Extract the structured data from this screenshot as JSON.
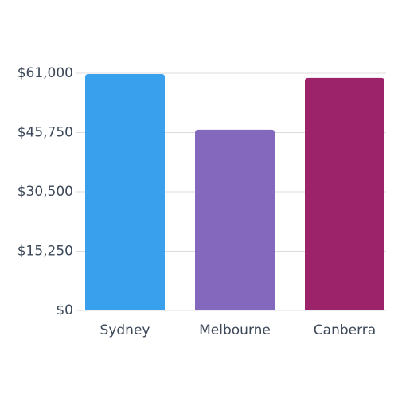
{
  "chart_data": {
    "type": "bar",
    "categories": [
      "Sydney",
      "Melbourne",
      "Canberra"
    ],
    "values": [
      60800,
      46500,
      59800
    ],
    "colors": [
      "#39a0ed",
      "#8468be",
      "#9c2369"
    ],
    "ylim": [
      0,
      61000
    ],
    "yticks": [
      {
        "value": 0,
        "label": "$0"
      },
      {
        "value": 15250,
        "label": "$15,250"
      },
      {
        "value": 30500,
        "label": "$30,500"
      },
      {
        "value": 45750,
        "label": "$45,750"
      },
      {
        "value": 61000,
        "label": "$61,000"
      }
    ],
    "grid": true
  }
}
